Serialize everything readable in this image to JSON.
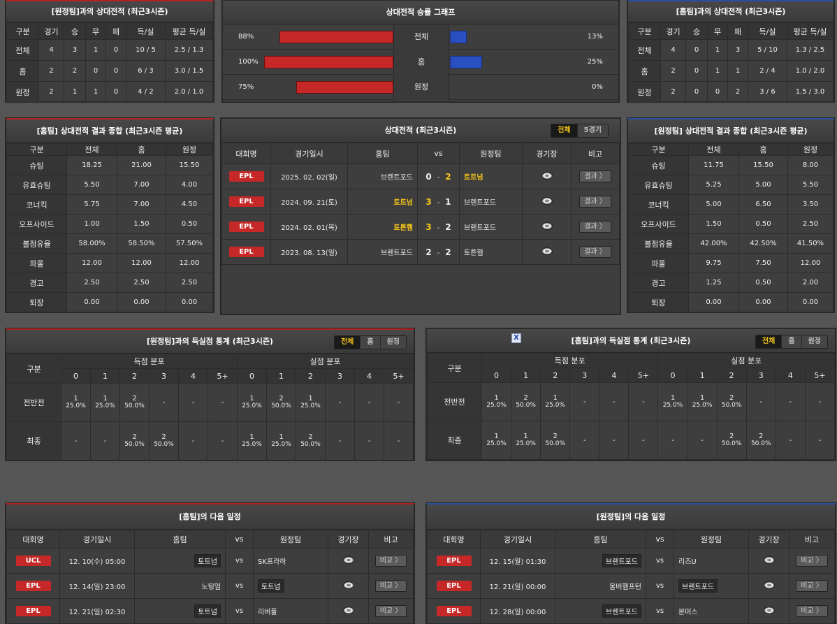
{
  "h2h_away": {
    "title": "[원정팀]과의 상대전적 (최근3시즌)",
    "headers": [
      "구분",
      "경기",
      "승",
      "무",
      "패",
      "득/실",
      "평균 득/실"
    ],
    "rows": [
      [
        "전체",
        "4",
        "3",
        "1",
        "0",
        "10 / 5",
        "2.5 / 1.3"
      ],
      [
        "홈",
        "2",
        "2",
        "0",
        "0",
        "6 / 3",
        "3.0 / 1.5"
      ],
      [
        "원정",
        "2",
        "1",
        "1",
        "0",
        "4 / 2",
        "2.0 / 1.0"
      ]
    ]
  },
  "graph": {
    "title": "상대전적 승률 그래프",
    "rows": [
      {
        "label": "전체",
        "left_text": "88%",
        "left_value": 88,
        "right_text": "13%",
        "right_value": 13
      },
      {
        "label": "홈",
        "left_text": "100%",
        "left_value": 100,
        "right_text": "25%",
        "right_value": 25
      },
      {
        "label": "원정",
        "left_text": "75%",
        "left_value": 75,
        "right_text": "0%",
        "right_value": 0
      }
    ]
  },
  "h2h_home": {
    "title": "[홈팀]과의 상대전적 (최근3시즌)",
    "headers": [
      "구분",
      "경기",
      "승",
      "무",
      "패",
      "득/실",
      "평균 득/실"
    ],
    "rows": [
      [
        "전체",
        "4",
        "0",
        "1",
        "3",
        "5 / 10",
        "1.3 / 2.5"
      ],
      [
        "홈",
        "2",
        "0",
        "1",
        "1",
        "2 / 4",
        "1.0 / 2.0"
      ],
      [
        "원정",
        "2",
        "0",
        "0",
        "2",
        "3 / 6",
        "1.5 / 3.0"
      ]
    ]
  },
  "home_summary": {
    "title": "[홈팀] 상대전적 결과 종합 (최근3시즌 평균)",
    "headers": [
      "구분",
      "전체",
      "홈",
      "원정"
    ],
    "rows": [
      [
        "슈팅",
        "18.25",
        "21.00",
        "15.50"
      ],
      [
        "유효슈팅",
        "5.50",
        "7.00",
        "4.00"
      ],
      [
        "코너킥",
        "5.75",
        "7.00",
        "4.50"
      ],
      [
        "오프사이드",
        "1.00",
        "1.50",
        "0.50"
      ],
      [
        "볼점유율",
        "58.00%",
        "58.50%",
        "57.50%"
      ],
      [
        "파울",
        "12.00",
        "12.00",
        "12.00"
      ],
      [
        "경고",
        "2.50",
        "2.50",
        "2.50"
      ],
      [
        "퇴장",
        "0.00",
        "0.00",
        "0.00"
      ]
    ]
  },
  "matches": {
    "title": "상대전적 (최근3시즌)",
    "tabs": [
      "전체",
      "5경기"
    ],
    "headers": [
      "대회명",
      "경기일시",
      "홈팀",
      "vs",
      "원정팀",
      "경기장",
      "비고"
    ],
    "rows": [
      {
        "league": "EPL",
        "date": "2025. 02. 02(일)",
        "home": "브렌트포드",
        "hs": "0",
        "sep": "-",
        "as": "2",
        "away": "토트넘",
        "btn": "결과 〉"
      },
      {
        "league": "EPL",
        "date": "2024. 09. 21(토)",
        "home": "토트넘",
        "hs": "3",
        "sep": "-",
        "as": "1",
        "away": "브렌트포드",
        "btn": "결과 〉"
      },
      {
        "league": "EPL",
        "date": "2024. 02. 01(목)",
        "home": "토튼햄",
        "hs": "3",
        "sep": "-",
        "as": "2",
        "away": "브렌트포드",
        "btn": "결과 〉"
      },
      {
        "league": "EPL",
        "date": "2023. 08. 13(일)",
        "home": "브렌트포드",
        "hs": "2",
        "sep": "-",
        "as": "2",
        "away": "토튼햄",
        "btn": "결과 〉"
      }
    ]
  },
  "away_summary": {
    "title": "[원정팀] 상대전적 결과 종합 (최근3시즌 평균)",
    "headers": [
      "구분",
      "전체",
      "홈",
      "원정"
    ],
    "rows": [
      [
        "슈팅",
        "11.75",
        "15.50",
        "8.00"
      ],
      [
        "유효슈팅",
        "5.25",
        "5.00",
        "5.50"
      ],
      [
        "코너킥",
        "5.00",
        "6.50",
        "3.50"
      ],
      [
        "오프사이드",
        "1.50",
        "0.50",
        "2.50"
      ],
      [
        "볼점유율",
        "42.00%",
        "42.50%",
        "41.50%"
      ],
      [
        "파울",
        "9.75",
        "7.50",
        "12.00"
      ],
      [
        "경고",
        "1.25",
        "0.50",
        "2.00"
      ],
      [
        "퇴장",
        "0.00",
        "0.00",
        "0.00"
      ]
    ]
  },
  "goals_left": {
    "title": "[원정팀]과의 득실점 통계 (최근3시즌)",
    "tabs": [
      "전체",
      "홈",
      "원정"
    ],
    "head_label": "구분",
    "group_scored": "득점 분포",
    "group_conceded": "실점 분포",
    "cols": [
      "0",
      "1",
      "2",
      "3",
      "4",
      "5+"
    ],
    "rows": [
      {
        "label": "전반전",
        "cells": [
          [
            "1",
            "25.0%"
          ],
          [
            "1",
            "25.0%"
          ],
          [
            "2",
            "50.0%"
          ],
          [
            "-",
            ""
          ],
          [
            "-",
            ""
          ],
          [
            "-",
            ""
          ],
          [
            "1",
            "25.0%"
          ],
          [
            "2",
            "50.0%"
          ],
          [
            "1",
            "25.0%"
          ],
          [
            "-",
            ""
          ],
          [
            "-",
            ""
          ],
          [
            "-",
            ""
          ]
        ]
      },
      {
        "label": "최종",
        "cells": [
          [
            "-",
            ""
          ],
          [
            "-",
            ""
          ],
          [
            "2",
            "50.0%"
          ],
          [
            "2",
            "50.0%"
          ],
          [
            "-",
            ""
          ],
          [
            "-",
            ""
          ],
          [
            "1",
            "25.0%"
          ],
          [
            "1",
            "25.0%"
          ],
          [
            "2",
            "50.0%"
          ],
          [
            "-",
            ""
          ],
          [
            "-",
            ""
          ],
          [
            "-",
            ""
          ]
        ]
      }
    ]
  },
  "goals_right": {
    "title": "[홈팀]과의 득실점 통계 (최근3시즌)",
    "tabs": [
      "전체",
      "홈",
      "원정"
    ],
    "head_label": "구분",
    "group_scored": "득점 분포",
    "group_conceded": "실점 분포",
    "cols": [
      "0",
      "1",
      "2",
      "3",
      "4",
      "5+"
    ],
    "rows": [
      {
        "label": "전반전",
        "cells": [
          [
            "1",
            "25.0%"
          ],
          [
            "2",
            "50.0%"
          ],
          [
            "1",
            "25.0%"
          ],
          [
            "-",
            ""
          ],
          [
            "-",
            ""
          ],
          [
            "-",
            ""
          ],
          [
            "1",
            "25.0%"
          ],
          [
            "1",
            "25.0%"
          ],
          [
            "2",
            "50.0%"
          ],
          [
            "-",
            ""
          ],
          [
            "-",
            ""
          ],
          [
            "-",
            ""
          ]
        ]
      },
      {
        "label": "최종",
        "cells": [
          [
            "1",
            "25.0%"
          ],
          [
            "1",
            "25.0%"
          ],
          [
            "2",
            "50.0%"
          ],
          [
            "-",
            ""
          ],
          [
            "-",
            ""
          ],
          [
            "-",
            ""
          ],
          [
            "-",
            ""
          ],
          [
            "-",
            ""
          ],
          [
            "2",
            "50.0%"
          ],
          [
            "2",
            "50.0%"
          ],
          [
            "-",
            ""
          ],
          [
            "-",
            ""
          ]
        ]
      }
    ]
  },
  "next_home": {
    "title": "[홈팀]의 다음 일정",
    "headers": [
      "대회명",
      "경기일시",
      "홈팀",
      "vs",
      "원정팀",
      "경기장",
      "비고"
    ],
    "rows": [
      {
        "league": "UCL",
        "date": "12. 10(수) 05:00",
        "home": "토트넘",
        "home_box": true,
        "vs": "vs",
        "away": "SK프라하",
        "away_box": false,
        "btn": "비교 〉"
      },
      {
        "league": "EPL",
        "date": "12. 14(일) 23:00",
        "home": "노팅엄",
        "home_box": false,
        "vs": "vs",
        "away": "토트넘",
        "away_box": true,
        "btn": "비교 〉"
      },
      {
        "league": "EPL",
        "date": "12. 21(일) 02:30",
        "home": "토트넘",
        "home_box": true,
        "vs": "vs",
        "away": "리버풀",
        "away_box": false,
        "btn": "비교 〉"
      }
    ]
  },
  "next_away": {
    "title": "[원정팀]의 다음 일정",
    "headers": [
      "대회명",
      "경기일시",
      "홈팀",
      "vs",
      "원정팀",
      "경기장",
      "비고"
    ],
    "rows": [
      {
        "league": "EPL",
        "date": "12. 15(월) 01:30",
        "home": "브렌트포드",
        "home_box": true,
        "vs": "vs",
        "away": "리즈U",
        "away_box": false,
        "btn": "비교 〉"
      },
      {
        "league": "EPL",
        "date": "12. 21(일) 00:00",
        "home": "울버햄프턴",
        "home_box": false,
        "vs": "vs",
        "away": "브렌트포드",
        "away_box": true,
        "btn": "비교 〉"
      },
      {
        "league": "EPL",
        "date": "12. 28(일) 00:00",
        "home": "브렌트포드",
        "home_box": true,
        "vs": "vs",
        "away": "본머스",
        "away_box": false,
        "btn": "비교 〉"
      }
    ]
  },
  "misc": {
    "x_icon": "X"
  }
}
